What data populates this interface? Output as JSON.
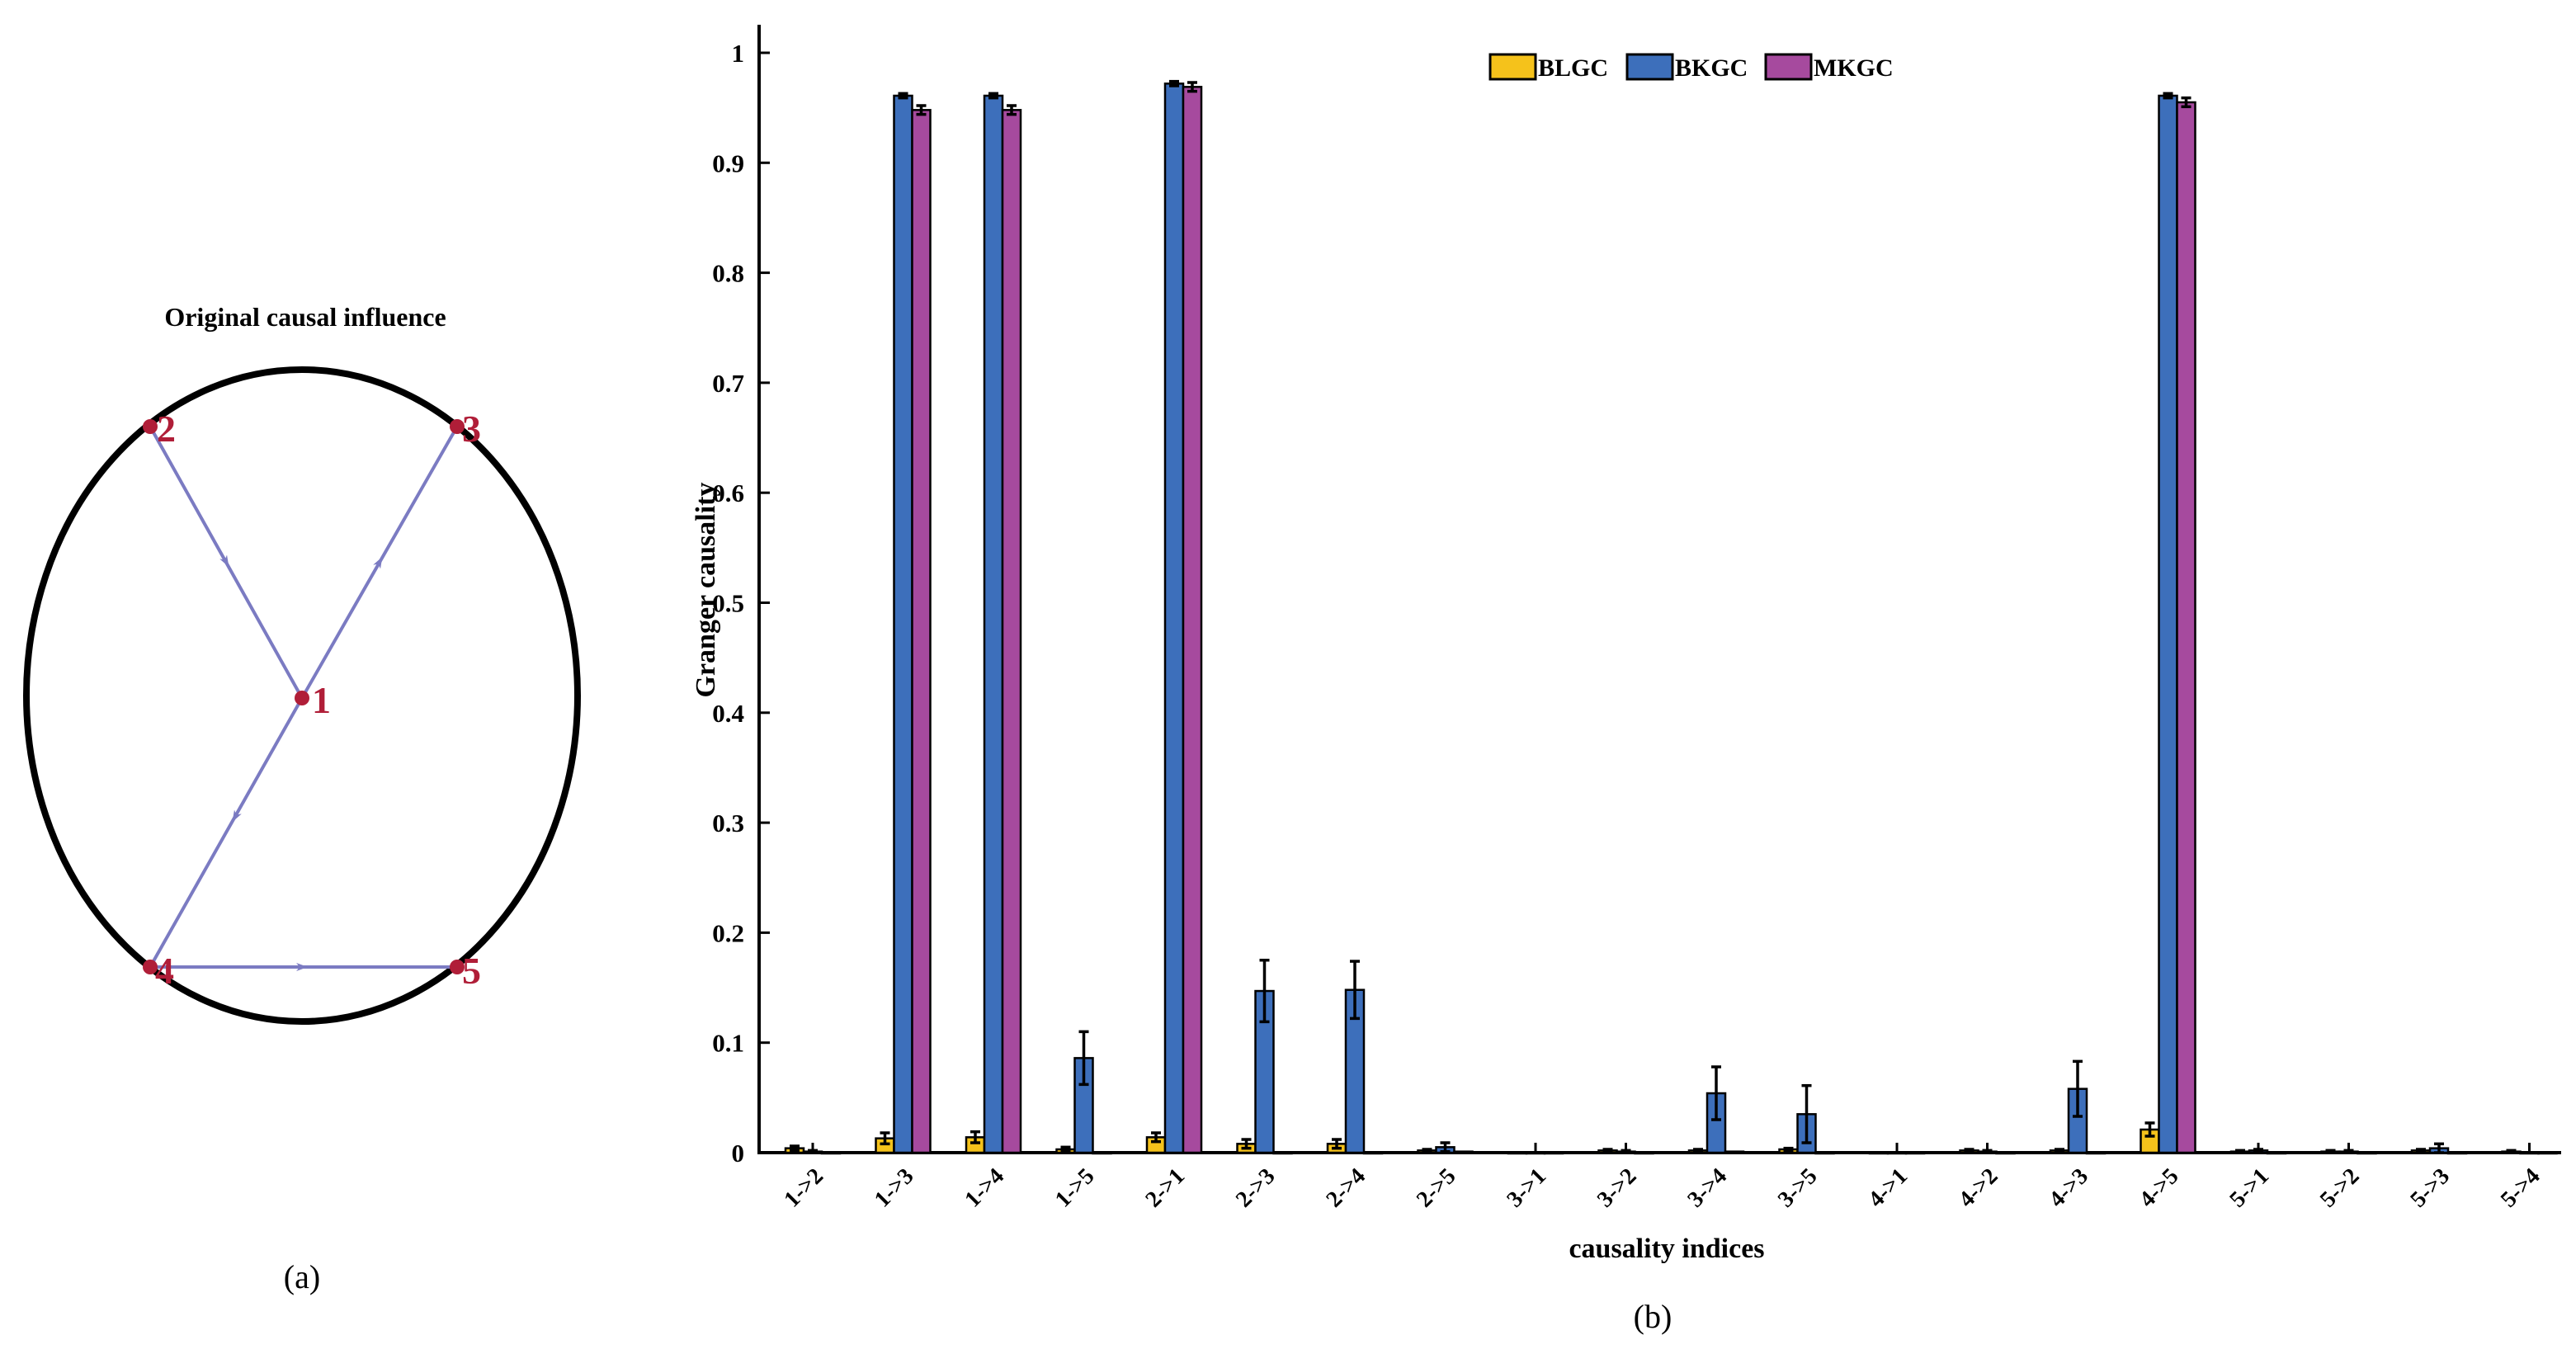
{
  "panel_a": {
    "title": "Original causal influence",
    "caption": "(a)",
    "nodes": [
      "1",
      "2",
      "3",
      "4",
      "5"
    ],
    "edges": [
      [
        "2",
        "1"
      ],
      [
        "1",
        "3"
      ],
      [
        "1",
        "4"
      ],
      [
        "4",
        "5"
      ]
    ],
    "edge_color": "#7b7bc2",
    "node_color": "#b01e38"
  },
  "panel_b": {
    "caption": "(b)"
  },
  "chart_data": {
    "type": "bar",
    "xlabel": "causality indices",
    "ylabel": "Granger causality",
    "ylim": [
      0,
      1.05
    ],
    "yticks": [
      0,
      0.1,
      0.2,
      0.3,
      0.4,
      0.5,
      0.6,
      0.7,
      0.8,
      0.9,
      1
    ],
    "ytick_labels": [
      "0",
      "0.1",
      "0.2",
      "0.3",
      "0.4",
      "0.5",
      "0.6",
      "0.7",
      "0.8",
      "0.9",
      "1"
    ],
    "legend_position": "top-center",
    "categories": [
      "1->2",
      "1->3",
      "1->4",
      "1->5",
      "2->1",
      "2->3",
      "2->4",
      "2->5",
      "3->1",
      "3->2",
      "3->4",
      "3->5",
      "4->1",
      "4->2",
      "4->3",
      "4->5",
      "5->1",
      "5->2",
      "5->3",
      "5->4"
    ],
    "series": [
      {
        "name": "BLGC",
        "color": "#f5c21b",
        "values": [
          0.004,
          0.013,
          0.014,
          0.003,
          0.014,
          0.008,
          0.008,
          0.002,
          0.0,
          0.002,
          0.002,
          0.003,
          0.0,
          0.002,
          0.002,
          0.021,
          0.001,
          0.001,
          0.002,
          0.001
        ],
        "errors": [
          0.002,
          0.005,
          0.005,
          0.002,
          0.004,
          0.004,
          0.004,
          0.001,
          0.0,
          0.001,
          0.001,
          0.001,
          0.0,
          0.001,
          0.001,
          0.006,
          0.001,
          0.001,
          0.001,
          0.001
        ]
      },
      {
        "name": "BKGC",
        "color": "#3d6fbb",
        "values": [
          0.001,
          0.961,
          0.961,
          0.086,
          0.972,
          0.147,
          0.148,
          0.005,
          0.0,
          0.001,
          0.054,
          0.035,
          0.0,
          0.001,
          0.058,
          0.961,
          0.002,
          0.001,
          0.004,
          0.0
        ],
        "errors": [
          0.001,
          0.002,
          0.002,
          0.024,
          0.002,
          0.028,
          0.026,
          0.004,
          0.0,
          0.001,
          0.024,
          0.026,
          0.0,
          0.001,
          0.025,
          0.002,
          0.001,
          0.001,
          0.004,
          0.0
        ]
      },
      {
        "name": "MKGC",
        "color": "#a64a9e",
        "values": [
          0.0,
          0.948,
          0.948,
          0.0,
          0.969,
          0.0,
          0.0,
          0.001,
          0.0,
          0.0,
          0.001,
          0.0,
          0.0,
          0.0,
          0.0,
          0.955,
          0.0,
          0.0,
          0.0,
          0.0
        ],
        "errors": [
          0.0,
          0.004,
          0.004,
          0.0,
          0.004,
          0.0,
          0.0,
          0.0,
          0.0,
          0.0,
          0.0,
          0.0,
          0.0,
          0.0,
          0.0,
          0.004,
          0.0,
          0.0,
          0.0,
          0.0
        ]
      }
    ]
  }
}
